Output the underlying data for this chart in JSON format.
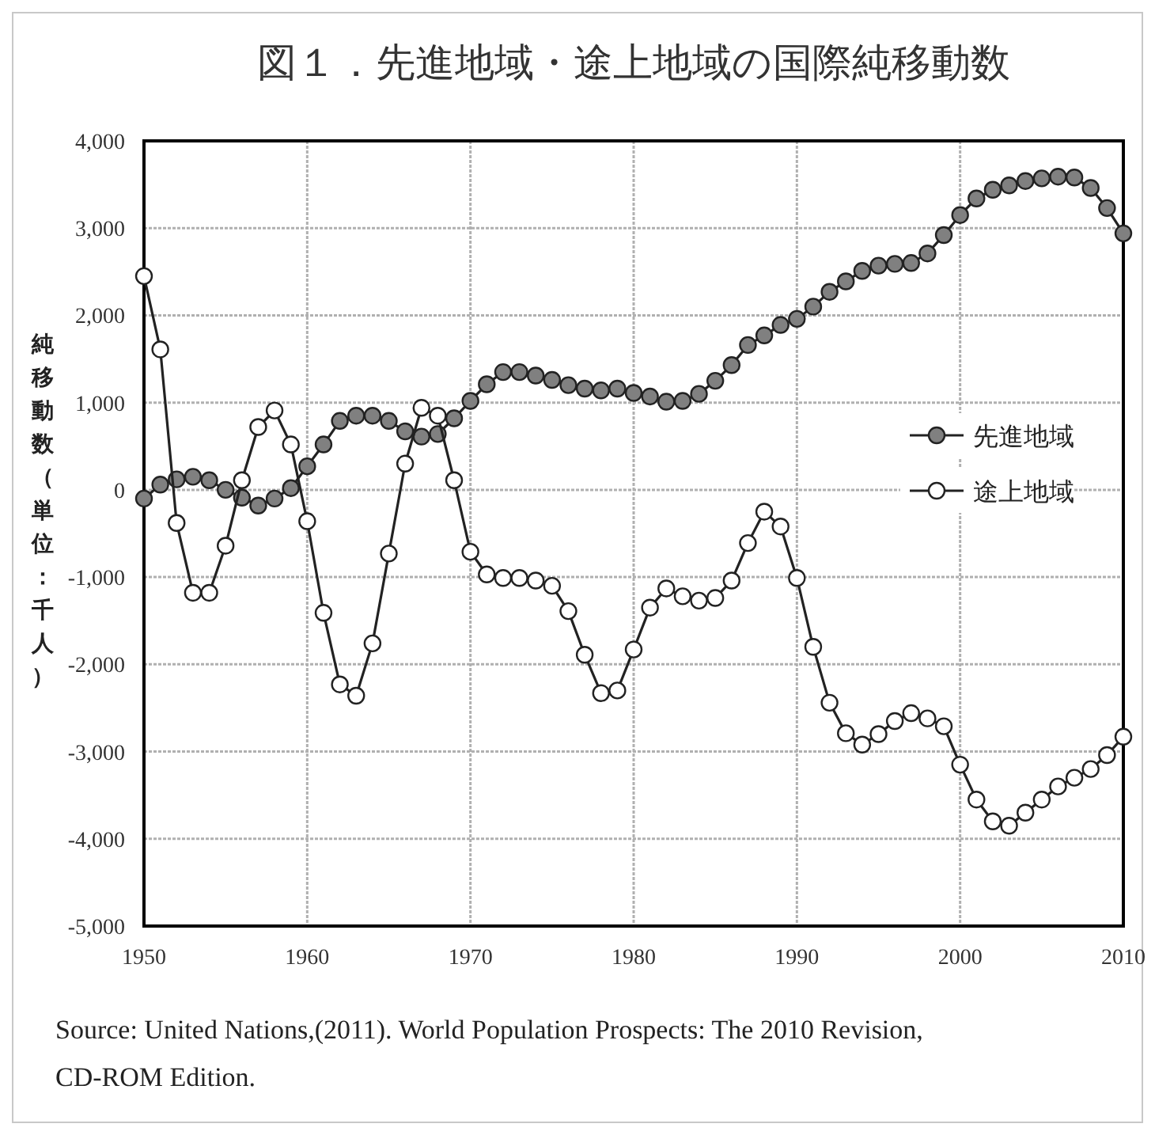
{
  "chart_data": {
    "type": "line",
    "title": "図１．先進地域・途上地域の国際純移動数",
    "ylabel": "純移動数（単位：千人）",
    "annotations": [
      "Source:  United Nations,(2011). World Population Prospects: The 2010 Revision, CD-ROM Edition."
    ],
    "x": [
      1950,
      1951,
      1952,
      1953,
      1954,
      1955,
      1956,
      1957,
      1958,
      1959,
      1960,
      1961,
      1962,
      1963,
      1964,
      1965,
      1966,
      1967,
      1968,
      1969,
      1970,
      1971,
      1972,
      1973,
      1974,
      1975,
      1976,
      1977,
      1978,
      1979,
      1980,
      1981,
      1982,
      1983,
      1984,
      1985,
      1986,
      1987,
      1988,
      1989,
      1990,
      1991,
      1992,
      1993,
      1994,
      1995,
      1996,
      1997,
      1998,
      1999,
      2000,
      2001,
      2002,
      2003,
      2004,
      2005,
      2006,
      2007,
      2008,
      2009,
      2010
    ],
    "series": [
      {
        "name": "先進地域",
        "color": "#808080",
        "values": [
          -100,
          60,
          120,
          150,
          110,
          0,
          -90,
          -180,
          -100,
          20,
          270,
          520,
          790,
          850,
          850,
          790,
          670,
          610,
          640,
          820,
          1020,
          1210,
          1350,
          1350,
          1310,
          1260,
          1200,
          1160,
          1140,
          1160,
          1110,
          1070,
          1010,
          1020,
          1100,
          1250,
          1430,
          1660,
          1770,
          1890,
          1960,
          2100,
          2270,
          2390,
          2510,
          2570,
          2590,
          2600,
          2710,
          2920,
          3150,
          3340,
          3440,
          3490,
          3540,
          3570,
          3590,
          3580,
          3460,
          3230,
          2940
        ]
      },
      {
        "name": "途上地域",
        "color": "#ffffff",
        "values": [
          2450,
          1610,
          -380,
          -1180,
          -1180,
          -640,
          110,
          720,
          910,
          520,
          -360,
          -1410,
          -2230,
          -2360,
          -1760,
          -730,
          300,
          940,
          850,
          110,
          -710,
          -970,
          -1010,
          -1010,
          -1040,
          -1100,
          -1390,
          -1890,
          -2330,
          -2300,
          -1830,
          -1350,
          -1130,
          -1220,
          -1270,
          -1240,
          -1040,
          -610,
          -250,
          -420,
          -1010,
          -1800,
          -2440,
          -2790,
          -2920,
          -2800,
          -2650,
          -2560,
          -2620,
          -2710,
          -3150,
          -3550,
          -3800,
          -3850,
          -3700,
          -3550,
          -3400,
          -3300,
          -3200,
          -3040,
          -2830
        ]
      }
    ],
    "xlim": [
      1950,
      2010
    ],
    "xticks": [
      1950,
      1960,
      1970,
      1980,
      1990,
      2000,
      2010
    ],
    "ylim": [
      -5000,
      4000
    ],
    "yticks": [
      {
        "value": -5000,
        "label": "-5,000"
      },
      {
        "value": -4000,
        "label": "-4,000"
      },
      {
        "value": -3000,
        "label": "-3,000"
      },
      {
        "value": -2000,
        "label": "-2,000"
      },
      {
        "value": -1000,
        "label": "-1,000"
      },
      0,
      {
        "value": 1000,
        "label": "1,000"
      },
      {
        "value": 2000,
        "label": "2,000"
      },
      {
        "value": 3000,
        "label": "3,000"
      },
      {
        "value": 4000,
        "label": "4,000"
      }
    ],
    "grid": true,
    "legend": "right",
    "marker": "circle",
    "line_style": "solid"
  }
}
